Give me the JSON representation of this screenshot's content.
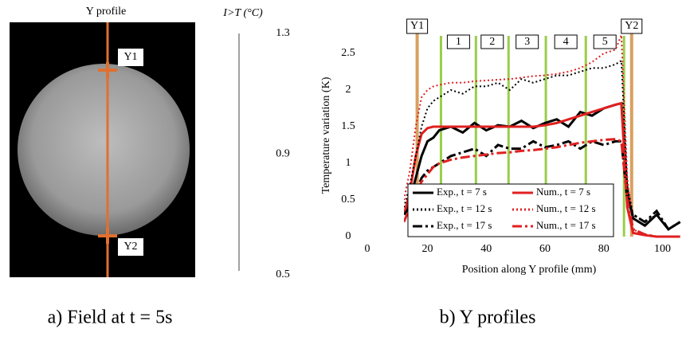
{
  "figure_a": {
    "top_label": "Y profile",
    "marker_top": "Y1",
    "marker_bottom": "Y2",
    "colorbar": {
      "label": "I>T (°C)",
      "lim": [
        0.5,
        1.3
      ],
      "ticks": [
        1.3,
        0.9,
        0.5
      ]
    },
    "caption": "a) Field at t = 5s"
  },
  "chart_data": {
    "type": "line",
    "caption": "b) Y profiles",
    "x_label": "Position along Y profile (mm)",
    "y_label": "Temperature variation (K)",
    "stray_label": "0",
    "xlim": [
      12,
      108
    ],
    "xticks": [
      20,
      40,
      60,
      80,
      100
    ],
    "ylim": [
      0,
      2.8
    ],
    "yticks": [
      0,
      0.5,
      1,
      1.5,
      2,
      2.5
    ],
    "x": [
      12,
      14,
      16,
      18,
      20,
      22,
      24,
      28,
      32,
      36,
      40,
      44,
      48,
      52,
      56,
      60,
      64,
      68,
      72,
      76,
      80,
      84,
      86,
      88,
      90,
      94,
      98,
      102,
      106
    ],
    "markers": [
      {
        "label": "Y1",
        "x": 16.5,
        "color": "#d9a060"
      },
      {
        "label": "Y2",
        "x": 89.5,
        "color": "#d9a060"
      }
    ],
    "section_color": "#9acd4a",
    "section_bounds": [
      24.6,
      36.5,
      47.6,
      60.3,
      73.9,
      86.9
    ],
    "section_labels": [
      "1",
      "2",
      "3",
      "4",
      "5"
    ],
    "legend": "lower left",
    "series": [
      {
        "name": "Exp., t = 7 s",
        "color": "#000000",
        "dash": "solid",
        "values": [
          0.3,
          0.5,
          0.8,
          1.1,
          1.3,
          1.35,
          1.45,
          1.5,
          1.42,
          1.55,
          1.45,
          1.52,
          1.5,
          1.58,
          1.48,
          1.55,
          1.6,
          1.5,
          1.7,
          1.65,
          1.75,
          1.8,
          1.82,
          0.6,
          0.25,
          0.15,
          0.3,
          0.1,
          0.2
        ]
      },
      {
        "name": "Num., t = 7 s",
        "color": "#e02020",
        "dash": "solid",
        "values": [
          0.3,
          0.6,
          1.1,
          1.4,
          1.48,
          1.5,
          1.5,
          1.5,
          1.5,
          1.5,
          1.5,
          1.5,
          1.5,
          1.5,
          1.5,
          1.52,
          1.55,
          1.6,
          1.65,
          1.7,
          1.75,
          1.8,
          1.82,
          0.4,
          0.05,
          0.02,
          0,
          0,
          0
        ]
      },
      {
        "name": "Exp., t = 12 s",
        "color": "#000000",
        "dash": "dotted",
        "values": [
          0.4,
          0.7,
          1.1,
          1.5,
          1.75,
          1.85,
          1.9,
          2.0,
          1.95,
          2.05,
          2.05,
          2.1,
          2.0,
          2.15,
          2.1,
          2.15,
          2.2,
          2.2,
          2.25,
          2.3,
          2.3,
          2.35,
          2.4,
          0.7,
          0.3,
          0.2,
          0.3,
          0.1,
          0.2
        ]
      },
      {
        "name": "Num., t = 12 s",
        "color": "#e02020",
        "dash": "dotted",
        "values": [
          0.5,
          0.9,
          1.5,
          1.9,
          2.0,
          2.05,
          2.07,
          2.1,
          2.1,
          2.12,
          2.13,
          2.14,
          2.15,
          2.17,
          2.19,
          2.2,
          2.22,
          2.25,
          2.3,
          2.38,
          2.5,
          2.55,
          2.75,
          0.8,
          0.1,
          0.02,
          0,
          0,
          0
        ]
      },
      {
        "name": "Exp., t = 17 s",
        "color": "#000000",
        "dash": "dashdot",
        "values": [
          0.3,
          0.4,
          0.6,
          0.8,
          0.9,
          0.95,
          1.0,
          1.1,
          1.15,
          1.2,
          1.1,
          1.25,
          1.2,
          1.2,
          1.3,
          1.22,
          1.25,
          1.3,
          1.2,
          1.3,
          1.25,
          1.3,
          1.3,
          0.5,
          0.3,
          0.2,
          0.35,
          0.1,
          0.2
        ]
      },
      {
        "name": "Num., t = 17 s",
        "color": "#e02020",
        "dash": "dashdot",
        "values": [
          0.2,
          0.4,
          0.6,
          0.75,
          0.85,
          0.95,
          1.0,
          1.05,
          1.08,
          1.1,
          1.12,
          1.14,
          1.15,
          1.17,
          1.18,
          1.2,
          1.22,
          1.25,
          1.28,
          1.3,
          1.32,
          1.33,
          1.3,
          0.5,
          0.1,
          0.03,
          0,
          0,
          0
        ]
      }
    ]
  }
}
